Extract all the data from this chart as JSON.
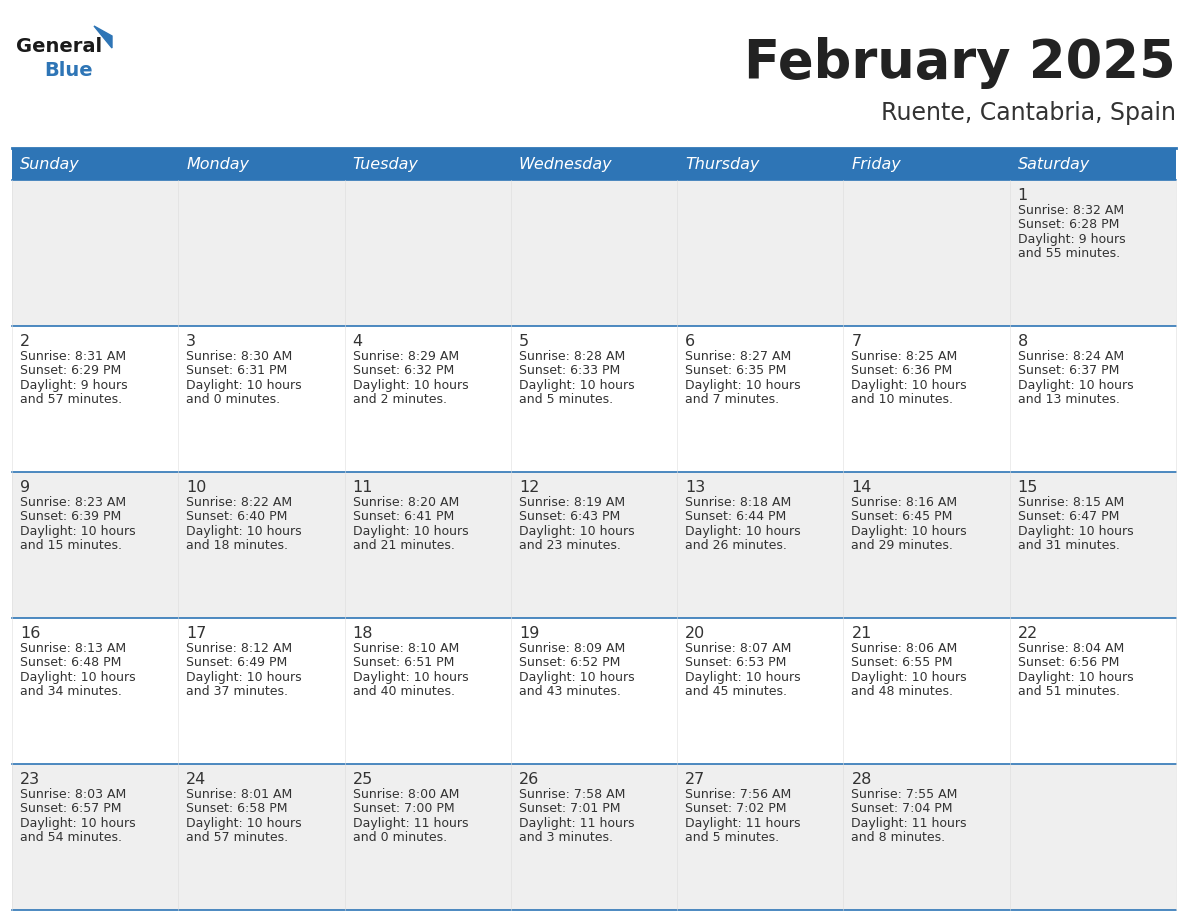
{
  "title": "February 2025",
  "subtitle": "Ruente, Cantabria, Spain",
  "header_bg": "#2E75B6",
  "header_text_color": "#FFFFFF",
  "cell_bg_odd": "#EFEFEF",
  "cell_bg_even": "#FFFFFF",
  "day_headers": [
    "Sunday",
    "Monday",
    "Tuesday",
    "Wednesday",
    "Thursday",
    "Friday",
    "Saturday"
  ],
  "title_color": "#222222",
  "subtitle_color": "#333333",
  "line_color": "#2E75B6",
  "cell_text_color": "#333333",
  "day_num_color": "#333333",
  "days_data": [
    {
      "day": 1,
      "col": 6,
      "row": 0,
      "sunrise": "8:32 AM",
      "sunset": "6:28 PM",
      "daylight_h": "9 hours",
      "daylight_m": "and 55 minutes."
    },
    {
      "day": 2,
      "col": 0,
      "row": 1,
      "sunrise": "8:31 AM",
      "sunset": "6:29 PM",
      "daylight_h": "9 hours",
      "daylight_m": "and 57 minutes."
    },
    {
      "day": 3,
      "col": 1,
      "row": 1,
      "sunrise": "8:30 AM",
      "sunset": "6:31 PM",
      "daylight_h": "10 hours",
      "daylight_m": "and 0 minutes."
    },
    {
      "day": 4,
      "col": 2,
      "row": 1,
      "sunrise": "8:29 AM",
      "sunset": "6:32 PM",
      "daylight_h": "10 hours",
      "daylight_m": "and 2 minutes."
    },
    {
      "day": 5,
      "col": 3,
      "row": 1,
      "sunrise": "8:28 AM",
      "sunset": "6:33 PM",
      "daylight_h": "10 hours",
      "daylight_m": "and 5 minutes."
    },
    {
      "day": 6,
      "col": 4,
      "row": 1,
      "sunrise": "8:27 AM",
      "sunset": "6:35 PM",
      "daylight_h": "10 hours",
      "daylight_m": "and 7 minutes."
    },
    {
      "day": 7,
      "col": 5,
      "row": 1,
      "sunrise": "8:25 AM",
      "sunset": "6:36 PM",
      "daylight_h": "10 hours",
      "daylight_m": "and 10 minutes."
    },
    {
      "day": 8,
      "col": 6,
      "row": 1,
      "sunrise": "8:24 AM",
      "sunset": "6:37 PM",
      "daylight_h": "10 hours",
      "daylight_m": "and 13 minutes."
    },
    {
      "day": 9,
      "col": 0,
      "row": 2,
      "sunrise": "8:23 AM",
      "sunset": "6:39 PM",
      "daylight_h": "10 hours",
      "daylight_m": "and 15 minutes."
    },
    {
      "day": 10,
      "col": 1,
      "row": 2,
      "sunrise": "8:22 AM",
      "sunset": "6:40 PM",
      "daylight_h": "10 hours",
      "daylight_m": "and 18 minutes."
    },
    {
      "day": 11,
      "col": 2,
      "row": 2,
      "sunrise": "8:20 AM",
      "sunset": "6:41 PM",
      "daylight_h": "10 hours",
      "daylight_m": "and 21 minutes."
    },
    {
      "day": 12,
      "col": 3,
      "row": 2,
      "sunrise": "8:19 AM",
      "sunset": "6:43 PM",
      "daylight_h": "10 hours",
      "daylight_m": "and 23 minutes."
    },
    {
      "day": 13,
      "col": 4,
      "row": 2,
      "sunrise": "8:18 AM",
      "sunset": "6:44 PM",
      "daylight_h": "10 hours",
      "daylight_m": "and 26 minutes."
    },
    {
      "day": 14,
      "col": 5,
      "row": 2,
      "sunrise": "8:16 AM",
      "sunset": "6:45 PM",
      "daylight_h": "10 hours",
      "daylight_m": "and 29 minutes."
    },
    {
      "day": 15,
      "col": 6,
      "row": 2,
      "sunrise": "8:15 AM",
      "sunset": "6:47 PM",
      "daylight_h": "10 hours",
      "daylight_m": "and 31 minutes."
    },
    {
      "day": 16,
      "col": 0,
      "row": 3,
      "sunrise": "8:13 AM",
      "sunset": "6:48 PM",
      "daylight_h": "10 hours",
      "daylight_m": "and 34 minutes."
    },
    {
      "day": 17,
      "col": 1,
      "row": 3,
      "sunrise": "8:12 AM",
      "sunset": "6:49 PM",
      "daylight_h": "10 hours",
      "daylight_m": "and 37 minutes."
    },
    {
      "day": 18,
      "col": 2,
      "row": 3,
      "sunrise": "8:10 AM",
      "sunset": "6:51 PM",
      "daylight_h": "10 hours",
      "daylight_m": "and 40 minutes."
    },
    {
      "day": 19,
      "col": 3,
      "row": 3,
      "sunrise": "8:09 AM",
      "sunset": "6:52 PM",
      "daylight_h": "10 hours",
      "daylight_m": "and 43 minutes."
    },
    {
      "day": 20,
      "col": 4,
      "row": 3,
      "sunrise": "8:07 AM",
      "sunset": "6:53 PM",
      "daylight_h": "10 hours",
      "daylight_m": "and 45 minutes."
    },
    {
      "day": 21,
      "col": 5,
      "row": 3,
      "sunrise": "8:06 AM",
      "sunset": "6:55 PM",
      "daylight_h": "10 hours",
      "daylight_m": "and 48 minutes."
    },
    {
      "day": 22,
      "col": 6,
      "row": 3,
      "sunrise": "8:04 AM",
      "sunset": "6:56 PM",
      "daylight_h": "10 hours",
      "daylight_m": "and 51 minutes."
    },
    {
      "day": 23,
      "col": 0,
      "row": 4,
      "sunrise": "8:03 AM",
      "sunset": "6:57 PM",
      "daylight_h": "10 hours",
      "daylight_m": "and 54 minutes."
    },
    {
      "day": 24,
      "col": 1,
      "row": 4,
      "sunrise": "8:01 AM",
      "sunset": "6:58 PM",
      "daylight_h": "10 hours",
      "daylight_m": "and 57 minutes."
    },
    {
      "day": 25,
      "col": 2,
      "row": 4,
      "sunrise": "8:00 AM",
      "sunset": "7:00 PM",
      "daylight_h": "11 hours",
      "daylight_m": "and 0 minutes."
    },
    {
      "day": 26,
      "col": 3,
      "row": 4,
      "sunrise": "7:58 AM",
      "sunset": "7:01 PM",
      "daylight_h": "11 hours",
      "daylight_m": "and 3 minutes."
    },
    {
      "day": 27,
      "col": 4,
      "row": 4,
      "sunrise": "7:56 AM",
      "sunset": "7:02 PM",
      "daylight_h": "11 hours",
      "daylight_m": "and 5 minutes."
    },
    {
      "day": 28,
      "col": 5,
      "row": 4,
      "sunrise": "7:55 AM",
      "sunset": "7:04 PM",
      "daylight_h": "11 hours",
      "daylight_m": "and 8 minutes."
    }
  ],
  "logo_color_general": "#1a1a1a",
  "logo_color_blue": "#2E75B6",
  "logo_triangle_color": "#2E75B6"
}
